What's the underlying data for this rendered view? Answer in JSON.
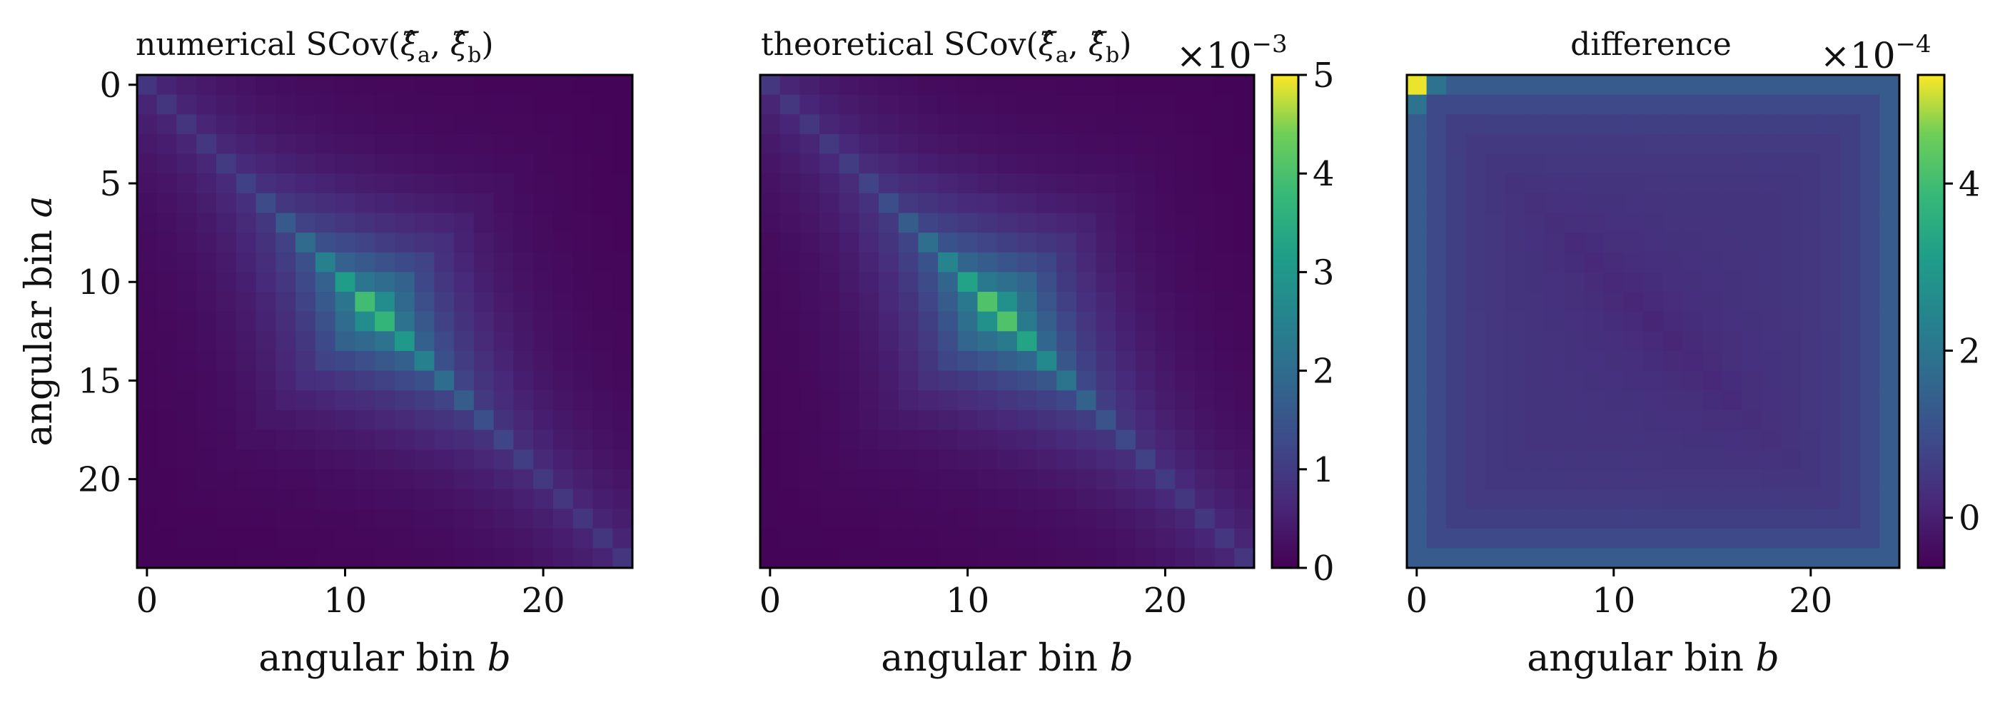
{
  "chart_data": [
    {
      "type": "heatmap",
      "name": "numerical",
      "title": "numerical SCov(ξ̂a, ξ̂b)",
      "xlabel": "angular bin b",
      "ylabel": "angular bin a",
      "n_bins": 25,
      "x_ticks": [
        "0",
        "10",
        "20"
      ],
      "y_ticks": [
        "0",
        "5",
        "10",
        "15",
        "20"
      ],
      "model": {
        "diag_start": 0.005,
        "diag_mid": 0.00085,
        "diag_end": 0.0038,
        "decay_scale": 4.5,
        "floor": 5e-05
      },
      "clim": [
        0,
        0.0052
      ],
      "colorbar": false
    },
    {
      "type": "heatmap",
      "name": "theoretical",
      "title": "theoretical SCov(ξ̂a, ξ̂b)",
      "xlabel": "angular bin b",
      "ylabel": "",
      "n_bins": 25,
      "x_ticks": [
        "0",
        "10",
        "20"
      ],
      "y_ticks": [],
      "model": {
        "diag_start": 0.005,
        "diag_mid": 0.00085,
        "diag_end": 0.004,
        "decay_scale": 4.5,
        "floor": 5e-05
      },
      "clim": [
        0,
        0.005
      ],
      "colorbar": true,
      "colorbar_ticks": [
        "0",
        "1",
        "2",
        "3",
        "4",
        "5"
      ],
      "colorbar_multiplier": "×10−3"
    },
    {
      "type": "heatmap",
      "name": "difference",
      "title": "difference",
      "xlabel": "angular bin b",
      "ylabel": "",
      "n_bins": 25,
      "x_ticks": [
        "0",
        "10",
        "20"
      ],
      "y_ticks": [],
      "model": {
        "corner_peak": 0.00052,
        "base": 4e-05,
        "edge_level": 9e-05,
        "dip": -3e-05
      },
      "clim": [
        -6e-05,
        0.00053
      ],
      "colorbar": true,
      "colorbar_ticks": [
        "0",
        "2",
        "4"
      ],
      "colorbar_multiplier": "×10−4"
    }
  ],
  "colormap": "viridis"
}
